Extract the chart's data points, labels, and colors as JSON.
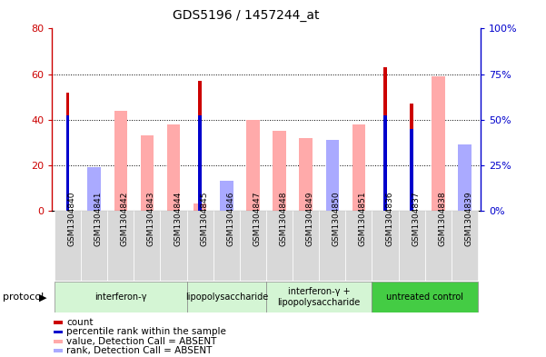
{
  "title": "GDS5196 / 1457244_at",
  "samples": [
    "GSM1304840",
    "GSM1304841",
    "GSM1304842",
    "GSM1304843",
    "GSM1304844",
    "GSM1304845",
    "GSM1304846",
    "GSM1304847",
    "GSM1304848",
    "GSM1304849",
    "GSM1304850",
    "GSM1304851",
    "GSM1304836",
    "GSM1304837",
    "GSM1304838",
    "GSM1304839"
  ],
  "count_values": [
    52,
    0,
    0,
    0,
    0,
    57,
    0,
    0,
    0,
    0,
    0,
    0,
    63,
    47,
    0,
    0
  ],
  "percentile_rank": [
    42,
    0,
    0,
    0,
    0,
    42,
    0,
    0,
    0,
    0,
    0,
    0,
    42,
    36,
    0,
    0
  ],
  "value_absent": [
    0,
    11,
    44,
    33,
    38,
    3,
    0,
    40,
    35,
    32,
    29,
    38,
    0,
    0,
    59,
    28
  ],
  "rank_absent": [
    0,
    19,
    0,
    0,
    0,
    0,
    13,
    0,
    0,
    0,
    31,
    0,
    0,
    0,
    0,
    29
  ],
  "protocols": [
    {
      "label": "interferon-γ",
      "start": 0,
      "end": 5,
      "color": "#d4f5d4"
    },
    {
      "label": "lipopolysaccharide",
      "start": 5,
      "end": 8,
      "color": "#d4f5d4"
    },
    {
      "label": "interferon-γ +\nlipopolysaccharide",
      "start": 8,
      "end": 12,
      "color": "#d4f5d4"
    },
    {
      "label": "untreated control",
      "start": 12,
      "end": 16,
      "color": "#44cc44"
    }
  ],
  "ylim_left": [
    0,
    80
  ],
  "ylim_right": [
    0,
    100
  ],
  "yticks_left": [
    0,
    20,
    40,
    60,
    80
  ],
  "yticks_right": [
    0,
    25,
    50,
    75,
    100
  ],
  "yticklabels_left": [
    "0",
    "20",
    "40",
    "60",
    "80"
  ],
  "yticklabels_right": [
    "0%",
    "25%",
    "50%",
    "75%",
    "100%"
  ],
  "color_count": "#cc0000",
  "color_percentile": "#0000cc",
  "color_value_absent": "#ffaaaa",
  "color_rank_absent": "#aaaaff",
  "legend_items": [
    {
      "label": "count",
      "color": "#cc0000"
    },
    {
      "label": "percentile rank within the sample",
      "color": "#0000cc"
    },
    {
      "label": "value, Detection Call = ABSENT",
      "color": "#ffaaaa"
    },
    {
      "label": "rank, Detection Call = ABSENT",
      "color": "#aaaaff"
    }
  ],
  "bar_width": 0.5,
  "thin_bar_width": 0.12,
  "protocol_label": "protocol",
  "cell_bg_color": "#d0d0d0"
}
